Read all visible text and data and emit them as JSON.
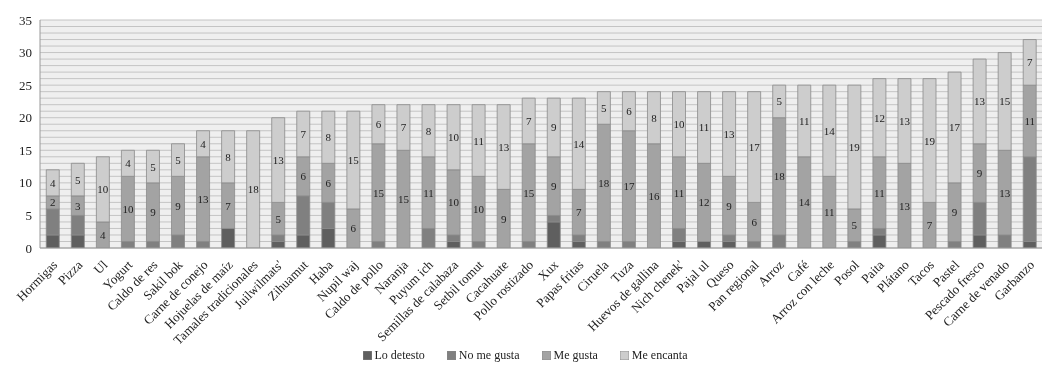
{
  "chart_data": {
    "type": "bar",
    "stacked": true,
    "categories": [
      "Hormigas",
      "Pizza",
      "Ul",
      "Yogurt",
      "Caldo de res",
      "Sakil bok",
      "Carne de conejo",
      "Hojuelas de maíz",
      "Tamales tradicionales",
      "Juilwilmats'",
      "Zihuamut",
      "Haba",
      "Nupil waj",
      "Caldo de pollo",
      "Naranja",
      "Puyum ich",
      "Semillas de calabaza",
      "Setbil tomut",
      "Cacahuate",
      "Pollo rostizado",
      "Xux",
      "Papas fritas",
      "Ciruela",
      "Tuza",
      "Huevos de gallina",
      "Nich chenek'",
      "Pajal ul",
      "Queso",
      "Pan regional",
      "Arroz",
      "Café",
      "Arroz con leche",
      "Posol",
      "Paita",
      "Plátano",
      "Tacos",
      "Pastel",
      "Pescado fresco",
      "Carne de venado",
      "Garbanzo"
    ],
    "series": [
      {
        "name": "Lo detesto",
        "color": "#5f5f5f",
        "values": [
          2,
          2,
          0,
          0,
          0,
          0,
          0,
          3,
          0,
          1,
          2,
          3,
          0,
          0,
          0,
          0,
          1,
          0,
          0,
          0,
          4,
          1,
          0,
          0,
          0,
          1,
          1,
          1,
          0,
          0,
          0,
          0,
          0,
          2,
          0,
          0,
          0,
          2,
          0,
          1
        ]
      },
      {
        "name": "No me gusta",
        "color": "#808080",
        "values": [
          4,
          3,
          0,
          1,
          1,
          2,
          1,
          0,
          0,
          1,
          6,
          4,
          0,
          1,
          0,
          3,
          1,
          1,
          0,
          1,
          1,
          1,
          1,
          1,
          0,
          2,
          0,
          1,
          1,
          2,
          0,
          0,
          1,
          1,
          0,
          0,
          1,
          5,
          2,
          13
        ]
      },
      {
        "name": "Me gusta",
        "color": "#a3a3a3",
        "values": [
          2,
          3,
          4,
          10,
          9,
          9,
          13,
          7,
          0,
          5,
          6,
          6,
          6,
          15,
          15,
          11,
          10,
          10,
          9,
          15,
          9,
          7,
          18,
          17,
          16,
          11,
          12,
          9,
          6,
          18,
          14,
          11,
          5,
          11,
          13,
          7,
          9,
          9,
          13,
          11
        ],
        "value_labels": [
          "2",
          "3",
          "4",
          "10",
          "9",
          "9",
          "13",
          "7",
          null,
          "5",
          "6",
          "6",
          "6",
          "15",
          "15",
          "11",
          "10",
          "10",
          "9",
          "15",
          "9",
          "7",
          "18",
          "17",
          "16",
          "11",
          "12",
          "9",
          "6",
          "18",
          "14",
          "11",
          "5",
          "11",
          "13",
          "7",
          "9",
          "9",
          "13",
          "11"
        ]
      },
      {
        "name": "Me encanta",
        "color": "#cdcdcd",
        "values": [
          4,
          5,
          10,
          4,
          5,
          5,
          4,
          8,
          18,
          13,
          7,
          8,
          15,
          6,
          7,
          8,
          10,
          11,
          13,
          7,
          9,
          14,
          5,
          6,
          8,
          10,
          11,
          13,
          17,
          5,
          11,
          14,
          19,
          12,
          13,
          19,
          17,
          13,
          15,
          7
        ],
        "value_labels": [
          "4",
          "5",
          "10",
          "4",
          "5",
          "5",
          "4",
          "8",
          "18",
          "13",
          "7",
          "8",
          "15",
          "6",
          "7",
          "8",
          "10",
          "11",
          "13",
          "7",
          "9",
          "14",
          "5",
          "6",
          "8",
          "10",
          "11",
          "13",
          "17",
          "5",
          "11",
          "14",
          "19",
          "12",
          "13",
          "19",
          "17",
          "13",
          "15",
          "7"
        ]
      }
    ],
    "ylim": [
      0,
      35
    ],
    "yticks": [
      0,
      {
        "value": 1,
        "label": null
      },
      {
        "value": 2,
        "label": null
      },
      {
        "value": 3,
        "label": null
      },
      {
        "value": 4,
        "label": null
      },
      5,
      {
        "value": 6,
        "label": null
      },
      {
        "value": 7,
        "label": null
      },
      {
        "value": 8,
        "label": null
      },
      {
        "value": 9,
        "label": null
      },
      10,
      {
        "value": 11,
        "label": null
      },
      {
        "value": 12,
        "label": null
      },
      {
        "value": 13,
        "label": null
      },
      {
        "value": 14,
        "label": null
      },
      15,
      {
        "value": 16,
        "label": null
      },
      {
        "value": 17,
        "label": null
      },
      {
        "value": 18,
        "label": null
      },
      {
        "value": 19,
        "label": null
      },
      20,
      {
        "value": 21,
        "label": null
      },
      {
        "value": 22,
        "label": null
      },
      {
        "value": 23,
        "label": null
      },
      {
        "value": 24,
        "label": null
      },
      25,
      {
        "value": 26,
        "label": null
      },
      {
        "value": 27,
        "label": null
      },
      {
        "value": 28,
        "label": null
      },
      {
        "value": 29,
        "label": null
      },
      30,
      {
        "value": 31,
        "label": null
      },
      {
        "value": 32,
        "label": null
      },
      {
        "value": 33,
        "label": null
      },
      {
        "value": 34,
        "label": null
      },
      35
    ],
    "grid": "y",
    "legend": "bottom"
  }
}
